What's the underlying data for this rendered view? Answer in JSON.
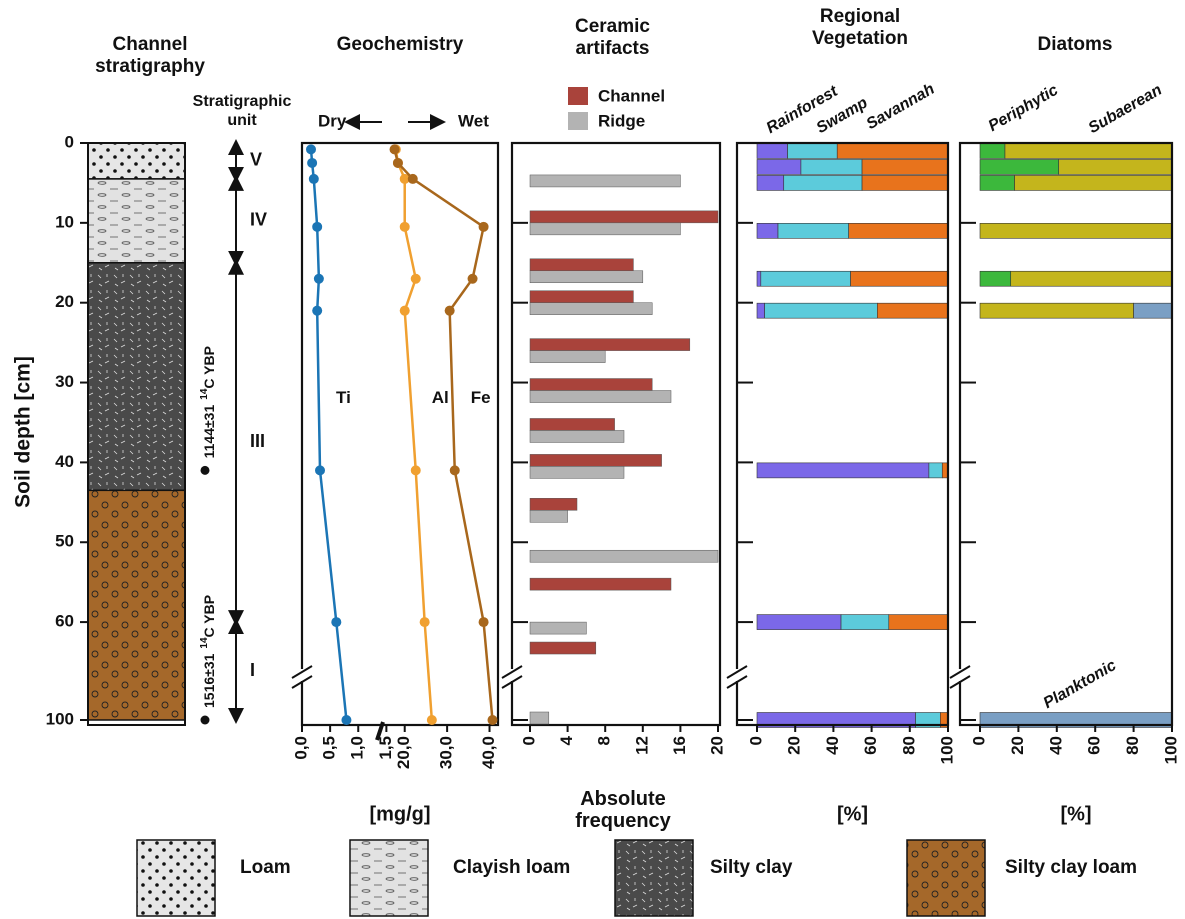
{
  "chart_data": [
    {
      "type": "column",
      "title": "Channel stratigraphy",
      "ylabel": "Soil depth [cm]",
      "ylim": [
        0,
        100
      ],
      "y_break": [
        66,
        95
      ],
      "yticks": [
        0,
        10,
        20,
        30,
        40,
        50,
        60,
        100
      ],
      "layers": [
        {
          "name": "Loam",
          "top": 0,
          "bottom": 4.5
        },
        {
          "name": "Clayish loam",
          "top": 4.5,
          "bottom": 15
        },
        {
          "name": "Silty clay",
          "top": 15,
          "bottom": 43.5
        },
        {
          "name": "Silty clay loam",
          "top": 43.5,
          "bottom": 100
        }
      ],
      "dates": [
        {
          "depth": 41,
          "age": "1144±31",
          "isotope": "14",
          "unit": "C YBP"
        },
        {
          "depth": 100,
          "age": "1516±31",
          "isotope": "14",
          "unit": "C YBP"
        }
      ],
      "units_title": "Stratigraphic unit",
      "units": [
        {
          "label": "V",
          "top": 0,
          "bottom": 4.5
        },
        {
          "label": "IV",
          "top": 4.5,
          "bottom": 15
        },
        {
          "label": "III",
          "top": 15,
          "bottom": 60
        },
        {
          "label": "I",
          "top": 60,
          "bottom": 100
        }
      ]
    },
    {
      "type": "line",
      "title": "Geochemistry",
      "xlabel": "[mg/g]",
      "annotation_left": "Dry",
      "annotation_right": "Wet",
      "y": [
        0.8,
        2.5,
        4.5,
        10.5,
        17,
        21,
        41,
        60,
        100
      ],
      "xlim": [
        0,
        42
      ],
      "x_break": [
        1.6,
        17
      ],
      "xticks": [
        {
          "value": 0,
          "label": "0,0"
        },
        {
          "value": 0.5,
          "label": "0,5"
        },
        {
          "value": 1,
          "label": "1,0"
        },
        {
          "value": 1.5,
          "label": "1,5"
        },
        {
          "value": 20,
          "label": "20,0"
        },
        {
          "value": 30,
          "label": "30,0"
        },
        {
          "value": 40,
          "label": "40,0"
        }
      ],
      "series": [
        {
          "name": "Ti",
          "color": "#1b75b5",
          "values": [
            0.16,
            0.18,
            0.21,
            0.27,
            0.3,
            0.27,
            0.32,
            0.61,
            0.79
          ]
        },
        {
          "name": "Al",
          "color": "#f0a030",
          "values": [
            17.9,
            18.4,
            20,
            20,
            22.6,
            20,
            22.6,
            24.7,
            26.4
          ]
        },
        {
          "name": "Fe",
          "color": "#a8671c",
          "values": [
            17.6,
            18.4,
            21.9,
            38.6,
            36,
            30.6,
            31.8,
            38.6,
            40.7
          ]
        }
      ]
    },
    {
      "type": "hbar",
      "title": "Ceramic artifacts",
      "xlabel": "Absolute frequency",
      "y": [
        4,
        10,
        16,
        20,
        26,
        31,
        36,
        40.5,
        46,
        51,
        56,
        60,
        64,
        99
      ],
      "xlim": [
        0,
        20
      ],
      "xticks": [
        0,
        4,
        8,
        12,
        16,
        20
      ],
      "series": [
        {
          "name": "Channel",
          "color": "#a9433b",
          "values": [
            null,
            20,
            11,
            11,
            17,
            13,
            9,
            14,
            5,
            null,
            15,
            null,
            7,
            null
          ]
        },
        {
          "name": "Ridge",
          "color": "#b3b3b3",
          "values": [
            16,
            16,
            12,
            13,
            8,
            15,
            10,
            10,
            4,
            20,
            null,
            6,
            null,
            2
          ]
        }
      ]
    },
    {
      "type": "stacked_hbar",
      "title": "Regional Vegetation",
      "xlabel": "[%]",
      "y": [
        1,
        3,
        5,
        11,
        17,
        21,
        41,
        60,
        100
      ],
      "xlim": [
        0,
        100
      ],
      "xticks": [
        0,
        20,
        40,
        60,
        80,
        100
      ],
      "series": [
        {
          "name": "Rainforest",
          "color": "#7b68e8",
          "values": [
            16,
            23,
            14,
            11,
            2,
            4,
            90,
            44,
            83
          ]
        },
        {
          "name": "Swamp",
          "color": "#5ccbdb",
          "values": [
            26,
            32,
            41,
            37,
            47,
            59,
            7,
            25,
            13
          ]
        },
        {
          "name": "Savannah",
          "color": "#e8731c",
          "values": [
            58,
            45,
            45,
            52,
            51,
            37,
            3,
            31,
            4
          ]
        }
      ]
    },
    {
      "type": "stacked_hbar",
      "title": "Diatoms",
      "xlabel": "[%]",
      "y": [
        1,
        3,
        5,
        11,
        17,
        21,
        100
      ],
      "xlim": [
        0,
        100
      ],
      "xticks": [
        0,
        20,
        40,
        60,
        80,
        100
      ],
      "series": [
        {
          "name": "Periphytic",
          "color": "#3cb83c",
          "values": [
            13,
            41,
            18,
            0,
            16,
            0,
            0
          ]
        },
        {
          "name": "Subaerean",
          "color": "#c4b51c",
          "values": [
            87,
            59,
            82,
            100,
            84,
            80,
            0
          ]
        },
        {
          "name": "Planktonic",
          "color": "#7a9fc4",
          "values": [
            0,
            0,
            0,
            0,
            0,
            20,
            100
          ]
        }
      ]
    }
  ]
}
